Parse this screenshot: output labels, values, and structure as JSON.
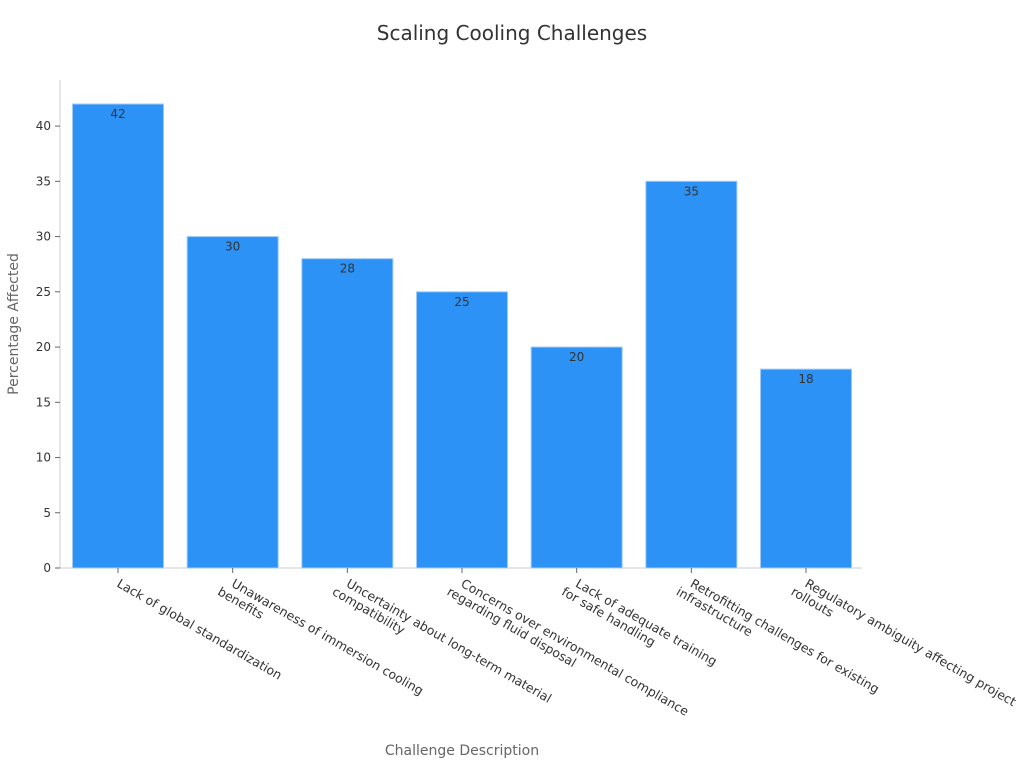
{
  "chart_data": {
    "type": "bar",
    "title": "Scaling Cooling Challenges",
    "xlabel": "Challenge Description",
    "ylabel": "Percentage Affected",
    "categories": [
      [
        "Lack of global standardization"
      ],
      [
        "Unawareness of immersion cooling",
        "benefits"
      ],
      [
        "Uncertainty about long-term material",
        "compatibility"
      ],
      [
        "Concerns over environmental compliance",
        "regarding fluid disposal"
      ],
      [
        "Lack of adequate training",
        "for safe handling"
      ],
      [
        "Retrofitting challenges for existing",
        "infrastructure"
      ],
      [
        "Regulatory ambiguity affecting project",
        "rollouts"
      ]
    ],
    "values": [
      42,
      30,
      28,
      25,
      20,
      35,
      18
    ],
    "ylim": [
      0,
      43.5
    ],
    "yticks": [
      0,
      5,
      10,
      15,
      20,
      25,
      30,
      35,
      40
    ],
    "grid": false,
    "legend": "none",
    "bar_color": "#2d92f5",
    "bar_edge_color": "#9fcaf5"
  }
}
